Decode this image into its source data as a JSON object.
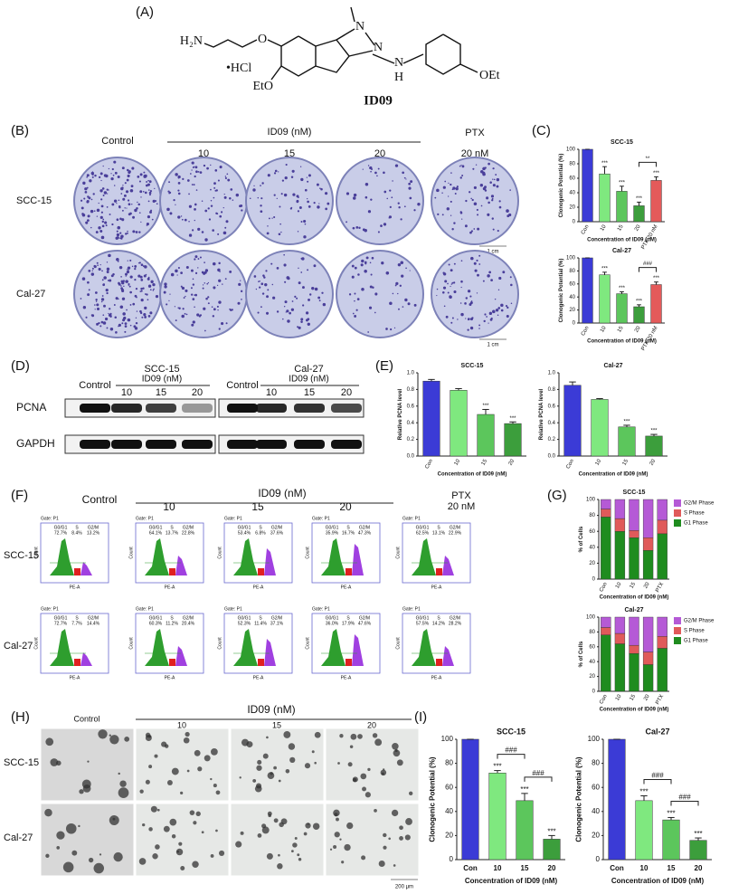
{
  "panels": {
    "A": {
      "label": "(A)",
      "amine": "H₂N",
      "ether_o": "O",
      "salt": "•HCl",
      "ethoxy_left": "EtO",
      "ethoxy_right": "OEt",
      "methyl_n": "N",
      "ring_n": "N",
      "nh_n": "N",
      "nh_h": "H",
      "compound": "ID09"
    },
    "B": {
      "label": "(B)",
      "columns": [
        "Control",
        "10",
        "15",
        "20",
        "20 nM"
      ],
      "group": "ID09 (nM)",
      "ptx": "PTX",
      "rows": [
        "SCC-15",
        "Cal-27"
      ],
      "scale": "1 cm"
    },
    "C": {
      "label": "(C)"
    },
    "D": {
      "label": "(D)",
      "groups": [
        {
          "name": "SCC-15",
          "unit": "ID09 (nM)",
          "control": "Control",
          "doses": [
            "10",
            "15",
            "20"
          ]
        },
        {
          "name": "Cal-27",
          "unit": "ID09 (nM)",
          "control": "Control",
          "doses": [
            "10",
            "15",
            "20"
          ]
        }
      ],
      "proteins": [
        "PCNA",
        "GAPDH"
      ]
    },
    "E": {
      "label": "(E)"
    },
    "F": {
      "label": "(F)",
      "columns": [
        "Control",
        "10",
        "15",
        "20",
        "20 nM"
      ],
      "group": "ID09 (nM)",
      "ptx": "PTX",
      "rows": [
        "SCC-15",
        "Cal-27"
      ],
      "gate": "Gate: P1",
      "phases": [
        "G0/G1",
        "S",
        "G2/M"
      ],
      "x_axis": "PE-A",
      "y_axis": "Count",
      "percentages": [
        [
          [
            "72.7%",
            "8.4%",
            "13.2%"
          ],
          [
            "64.1%",
            "13.7%",
            "22.8%"
          ],
          [
            "53.4%",
            "6.8%",
            "37.6%"
          ],
          [
            "35.9%",
            "16.7%",
            "47.3%"
          ],
          [
            "62.5%",
            "13.1%",
            "22.9%"
          ]
        ],
        [
          [
            "72.7%",
            "7.7%",
            "14.4%"
          ],
          [
            "60.3%",
            "11.2%",
            "20.4%"
          ],
          [
            "52.3%",
            "11.4%",
            "37.1%"
          ],
          [
            "36.0%",
            "17.9%",
            "47.6%"
          ],
          [
            "57.5%",
            "14.2%",
            "28.2%"
          ]
        ]
      ]
    },
    "G": {
      "label": "(G)"
    },
    "H": {
      "label": "(H)",
      "columns": [
        "Control",
        "10",
        "15",
        "20"
      ],
      "group": "ID09 (nM)",
      "rows": [
        "SCC-15",
        "Cal-27"
      ],
      "scale": "200 μm"
    },
    "I": {
      "label": "(I)"
    }
  },
  "chart_data": [
    {
      "type": "bar",
      "title": "SCC-15",
      "categories": [
        "Con",
        "10",
        "15",
        "20",
        "PTX 20 nM"
      ],
      "values": [
        100,
        66,
        42,
        22,
        57
      ],
      "errors": [
        0,
        10,
        7,
        5,
        5
      ],
      "colors": [
        "#3b3bd6",
        "#7fe87f",
        "#5cc65c",
        "#3c9e3c",
        "#e45a5a"
      ],
      "significance": [
        null,
        "***",
        "***",
        "***",
        "***"
      ],
      "brackets": [
        {
          "from": 3,
          "to": 4,
          "text": "**"
        }
      ],
      "ylim": [
        0,
        100
      ],
      "yticks": [
        0,
        20,
        40,
        60,
        80,
        100
      ],
      "y_label": "Clonogenic Potential (%)",
      "x_label": "Concentration of ID09 (nM)"
    },
    {
      "type": "bar",
      "title": "Cal-27",
      "categories": [
        "Con",
        "10",
        "15",
        "20",
        "PTX 20 nM"
      ],
      "values": [
        100,
        74,
        45,
        25,
        59
      ],
      "errors": [
        0,
        4,
        3,
        3,
        4
      ],
      "colors": [
        "#3b3bd6",
        "#7fe87f",
        "#5cc65c",
        "#3c9e3c",
        "#e45a5a"
      ],
      "significance": [
        null,
        "***",
        "***",
        "***",
        "***"
      ],
      "brackets": [
        {
          "from": 3,
          "to": 4,
          "text": "###"
        }
      ],
      "ylim": [
        0,
        100
      ],
      "yticks": [
        0,
        20,
        40,
        60,
        80,
        100
      ],
      "y_label": "Clonogenic Potential (%)",
      "x_label": "Concentration of ID09 (nM)"
    },
    {
      "type": "bar",
      "title": "SCC-15",
      "categories": [
        "Con",
        "10",
        "15",
        "20"
      ],
      "values": [
        0.9,
        0.79,
        0.5,
        0.39
      ],
      "errors": [
        0.02,
        0.02,
        0.06,
        0.02
      ],
      "colors": [
        "#3b3bd6",
        "#7fe87f",
        "#5cc65c",
        "#3c9e3c"
      ],
      "significance": [
        null,
        null,
        "***",
        "***"
      ],
      "ylim": [
        0,
        1
      ],
      "yticks": [
        {
          "value": 0,
          "label": "0.0"
        },
        0.2,
        0.4,
        0.6,
        0.8,
        {
          "value": 1,
          "label": "1.0"
        }
      ],
      "y_label": "Relative PCNA level",
      "x_label": "Concentration of ID09 (nM)"
    },
    {
      "type": "bar",
      "title": "Cal-27",
      "categories": [
        "Con",
        "10",
        "15",
        "20"
      ],
      "values": [
        0.85,
        0.68,
        0.35,
        0.24
      ],
      "errors": [
        0.04,
        0.01,
        0.02,
        0.02
      ],
      "colors": [
        "#3b3bd6",
        "#7fe87f",
        "#5cc65c",
        "#3c9e3c"
      ],
      "significance": [
        null,
        null,
        "***",
        "***"
      ],
      "ylim": [
        0,
        1
      ],
      "yticks": [
        {
          "value": 0,
          "label": "0.0"
        },
        0.2,
        0.4,
        0.6,
        0.8,
        {
          "value": 1,
          "label": "1.0"
        }
      ],
      "y_label": "Relative PCNA level",
      "x_label": "Concentration of ID09 (nM)"
    },
    {
      "type": "stacked_bar",
      "title": "SCC-15",
      "categories": [
        "Con",
        "10",
        "15",
        "20",
        "PTX"
      ],
      "series": [
        {
          "name": "G1 Phase",
          "color": "#1f8c1f",
          "values": [
            78,
            60,
            52,
            36,
            57
          ]
        },
        {
          "name": "S Phase",
          "color": "#e05a5a",
          "values": [
            10,
            16,
            9,
            16,
            17
          ]
        },
        {
          "name": "G2/M Phase",
          "color": "#b55ad6",
          "values": [
            12,
            24,
            39,
            48,
            26
          ]
        }
      ],
      "ylim": [
        0,
        100
      ],
      "yticks": [
        0,
        20,
        40,
        60,
        80,
        100
      ],
      "y_label": "% of Cells",
      "x_label": "Concentration of ID09 (nM)",
      "legend": "right"
    },
    {
      "type": "stacked_bar",
      "title": "Cal-27",
      "categories": [
        "Con",
        "10",
        "15",
        "20",
        "PTX"
      ],
      "series": [
        {
          "name": "G1 Phase",
          "color": "#1f8c1f",
          "values": [
            76,
            64,
            51,
            36,
            58
          ]
        },
        {
          "name": "S Phase",
          "color": "#e05a5a",
          "values": [
            10,
            14,
            11,
            17,
            16
          ]
        },
        {
          "name": "G2/M Phase",
          "color": "#b55ad6",
          "values": [
            14,
            22,
            38,
            47,
            26
          ]
        }
      ],
      "ylim": [
        0,
        100
      ],
      "yticks": [
        0,
        20,
        40,
        60,
        80,
        100
      ],
      "y_label": "% of Cells",
      "x_label": "Concentration of ID09 (nM)",
      "legend": "right"
    },
    {
      "type": "bar",
      "title": "SCC-15",
      "categories": [
        "Con",
        "10",
        "15",
        "20"
      ],
      "values": [
        100,
        72,
        49,
        17
      ],
      "errors": [
        0,
        2,
        6,
        3
      ],
      "colors": [
        "#3b3bd6",
        "#7fe87f",
        "#5cc65c",
        "#3c9e3c"
      ],
      "significance": [
        null,
        "***",
        "***",
        "***"
      ],
      "brackets": [
        {
          "from": 1,
          "to": 2,
          "text": "###"
        },
        {
          "from": 2,
          "to": 3,
          "text": "###"
        }
      ],
      "ylim": [
        0,
        100
      ],
      "yticks": [
        0,
        20,
        40,
        60,
        80,
        100
      ],
      "y_label": "Clonogenic Potential (%)",
      "x_label": "Concentration of ID09 (nM)"
    },
    {
      "type": "bar",
      "title": "Cal-27",
      "categories": [
        "Con",
        "10",
        "15",
        "20"
      ],
      "values": [
        100,
        49,
        33,
        16
      ],
      "errors": [
        0,
        4,
        2,
        2
      ],
      "colors": [
        "#3b3bd6",
        "#7fe87f",
        "#5cc65c",
        "#3c9e3c"
      ],
      "significance": [
        null,
        "***",
        "***",
        "***"
      ],
      "brackets": [
        {
          "from": 1,
          "to": 2,
          "text": "###"
        },
        {
          "from": 2,
          "to": 3,
          "text": "###"
        }
      ],
      "ylim": [
        0,
        100
      ],
      "yticks": [
        0,
        20,
        40,
        60,
        80,
        100
      ],
      "y_label": "Clonogenic Potential (%)",
      "x_label": "Concentration of ID09 (nM)"
    }
  ]
}
